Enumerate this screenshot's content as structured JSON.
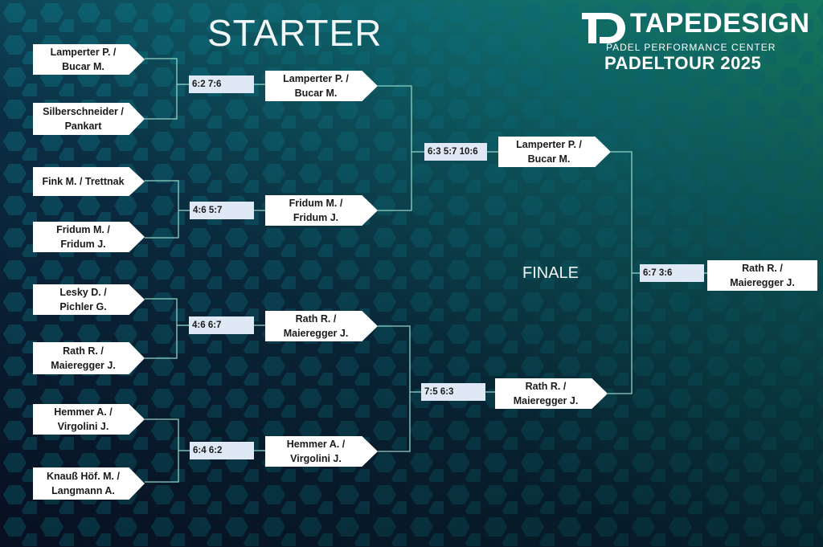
{
  "title": "STARTER",
  "finale_label": "FINALE",
  "logo": {
    "brand": "TAPEDESIGN",
    "subtitle": "PADEL PERFORMANCE CENTER",
    "tour": "PADELTOUR 2025",
    "mark_icon": "td-monogram-icon"
  },
  "colors": {
    "line": "#8fd3c8",
    "team_box": "#ffffff",
    "score_box": "#dfe9f5"
  },
  "bracket": {
    "round1": [
      {
        "line1": "Lamperter P. /",
        "line2": "Bucar M."
      },
      {
        "line1": "Silberschneider /",
        "line2": "Pankart"
      },
      {
        "line1": "Fink M. / Trettnak",
        "line2": ""
      },
      {
        "line1": "Fridum M. /",
        "line2": "Fridum J."
      },
      {
        "line1": "Lesky D. /",
        "line2": "Pichler G."
      },
      {
        "line1": "Rath R. /",
        "line2": "Maieregger J."
      },
      {
        "line1": "Hemmer A. /",
        "line2": "Virgolini J."
      },
      {
        "line1": "Knauß Höf. M. /",
        "line2": "Langmann A."
      }
    ],
    "round1_scores": [
      "6:2 7:6",
      "4:6 5:7",
      "4:6 6:7",
      "6:4 6:2"
    ],
    "round2": [
      {
        "line1": "Lamperter P. /",
        "line2": "Bucar M."
      },
      {
        "line1": "Fridum M. /",
        "line2": "Fridum J."
      },
      {
        "line1": "Rath R. /",
        "line2": "Maieregger J."
      },
      {
        "line1": "Hemmer A. /",
        "line2": "Virgolini J."
      }
    ],
    "round2_scores": [
      "6:3 5:7 10:6",
      "7:5 6:3"
    ],
    "semis": [
      {
        "line1": "Lamperter P. /",
        "line2": "Bucar M."
      },
      {
        "line1": "Rath R. /",
        "line2": "Maieregger J."
      }
    ],
    "final_score": "6:7 3:6",
    "winner": {
      "line1": "Rath R. /",
      "line2": "Maieregger J."
    }
  }
}
